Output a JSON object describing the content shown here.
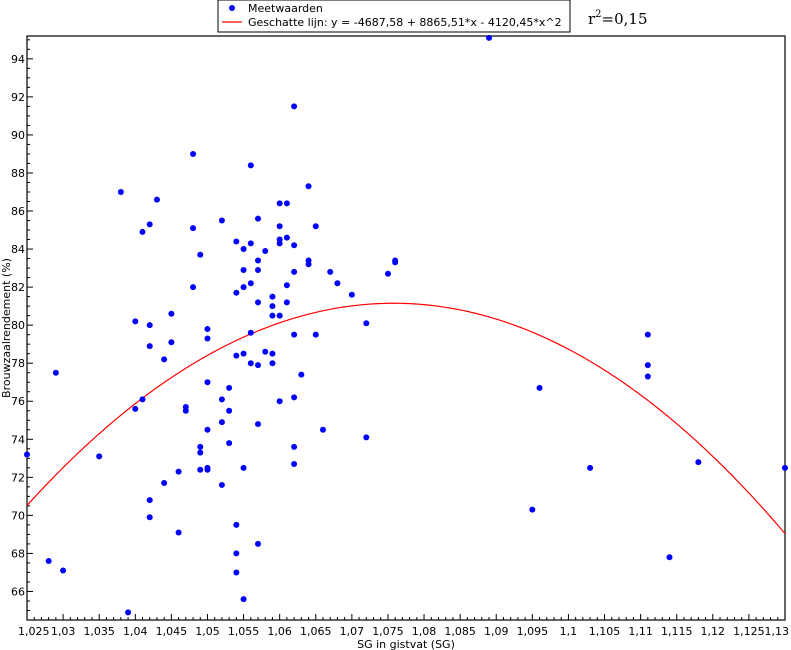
{
  "chart_data": {
    "type": "scatter",
    "xlabel": "SG in gistvat (SG)",
    "ylabel": "Brouwzaalrendement (%)",
    "xlim": [
      1.025,
      1.13
    ],
    "ylim": [
      64.5,
      95.2
    ],
    "x_ticks": [
      "1,025",
      "1,03",
      "1,035",
      "1,04",
      "1,045",
      "1,05",
      "1,055",
      "1,06",
      "1,065",
      "1,07",
      "1,075",
      "1,08",
      "1,085",
      "1,09",
      "1,095",
      "1,1",
      "1,105",
      "1,11",
      "1,115",
      "1,12",
      "1,125",
      "1,13"
    ],
    "y_ticks": [
      "66",
      "68",
      "70",
      "72",
      "74",
      "76",
      "78",
      "80",
      "82",
      "84",
      "86",
      "88",
      "90",
      "92",
      "94"
    ],
    "legend_position": "top-center",
    "annotation": {
      "prefix": "r",
      "sup": "2",
      "value": "=0,15"
    },
    "series": [
      {
        "name": "Meetwaarden",
        "kind": "scatter",
        "color": "#0000ff",
        "points": [
          [
            1.025,
            73.2
          ],
          [
            1.028,
            67.6
          ],
          [
            1.029,
            77.5
          ],
          [
            1.03,
            67.1
          ],
          [
            1.035,
            73.1
          ],
          [
            1.038,
            87.0
          ],
          [
            1.039,
            64.9
          ],
          [
            1.04,
            80.2
          ],
          [
            1.04,
            75.6
          ],
          [
            1.041,
            84.9
          ],
          [
            1.041,
            76.1
          ],
          [
            1.042,
            85.3
          ],
          [
            1.042,
            80.0
          ],
          [
            1.042,
            78.9
          ],
          [
            1.042,
            70.8
          ],
          [
            1.042,
            69.9
          ],
          [
            1.043,
            86.6
          ],
          [
            1.044,
            78.2
          ],
          [
            1.044,
            71.7
          ],
          [
            1.045,
            80.6
          ],
          [
            1.045,
            79.1
          ],
          [
            1.046,
            72.3
          ],
          [
            1.046,
            69.1
          ],
          [
            1.047,
            75.7
          ],
          [
            1.047,
            75.5
          ],
          [
            1.048,
            85.1
          ],
          [
            1.048,
            82.0
          ],
          [
            1.048,
            89.0
          ],
          [
            1.049,
            83.7
          ],
          [
            1.049,
            73.6
          ],
          [
            1.049,
            73.3
          ],
          [
            1.049,
            72.4
          ],
          [
            1.05,
            79.8
          ],
          [
            1.05,
            79.3
          ],
          [
            1.05,
            77.0
          ],
          [
            1.05,
            74.5
          ],
          [
            1.05,
            72.5
          ],
          [
            1.05,
            72.4
          ],
          [
            1.052,
            85.5
          ],
          [
            1.052,
            76.1
          ],
          [
            1.052,
            74.9
          ],
          [
            1.052,
            71.6
          ],
          [
            1.053,
            76.7
          ],
          [
            1.053,
            75.5
          ],
          [
            1.053,
            73.8
          ],
          [
            1.054,
            84.4
          ],
          [
            1.054,
            81.7
          ],
          [
            1.054,
            78.4
          ],
          [
            1.054,
            69.5
          ],
          [
            1.054,
            68.0
          ],
          [
            1.054,
            67.0
          ],
          [
            1.055,
            84.0
          ],
          [
            1.055,
            82.9
          ],
          [
            1.055,
            82.0
          ],
          [
            1.055,
            78.5
          ],
          [
            1.055,
            72.5
          ],
          [
            1.055,
            65.6
          ],
          [
            1.056,
            88.4
          ],
          [
            1.056,
            84.3
          ],
          [
            1.056,
            82.2
          ],
          [
            1.056,
            79.6
          ],
          [
            1.056,
            78.0
          ],
          [
            1.057,
            85.6
          ],
          [
            1.057,
            83.4
          ],
          [
            1.057,
            82.9
          ],
          [
            1.057,
            81.2
          ],
          [
            1.057,
            77.9
          ],
          [
            1.057,
            74.8
          ],
          [
            1.057,
            68.5
          ],
          [
            1.058,
            83.9
          ],
          [
            1.058,
            78.6
          ],
          [
            1.059,
            81.5
          ],
          [
            1.059,
            81.0
          ],
          [
            1.059,
            80.5
          ],
          [
            1.059,
            78.5
          ],
          [
            1.059,
            78.0
          ],
          [
            1.06,
            86.4
          ],
          [
            1.06,
            85.2
          ],
          [
            1.06,
            84.5
          ],
          [
            1.06,
            84.3
          ],
          [
            1.06,
            80.5
          ],
          [
            1.06,
            76.0
          ],
          [
            1.061,
            86.4
          ],
          [
            1.061,
            84.6
          ],
          [
            1.061,
            82.1
          ],
          [
            1.061,
            81.2
          ],
          [
            1.062,
            91.5
          ],
          [
            1.062,
            84.2
          ],
          [
            1.062,
            82.8
          ],
          [
            1.062,
            79.5
          ],
          [
            1.062,
            76.2
          ],
          [
            1.062,
            73.6
          ],
          [
            1.062,
            72.7
          ],
          [
            1.063,
            77.4
          ],
          [
            1.064,
            87.3
          ],
          [
            1.064,
            83.4
          ],
          [
            1.064,
            83.2
          ],
          [
            1.065,
            85.2
          ],
          [
            1.065,
            79.5
          ],
          [
            1.066,
            74.5
          ],
          [
            1.067,
            82.8
          ],
          [
            1.068,
            82.2
          ],
          [
            1.07,
            81.6
          ],
          [
            1.072,
            80.1
          ],
          [
            1.072,
            74.1
          ],
          [
            1.075,
            82.7
          ],
          [
            1.076,
            83.4
          ],
          [
            1.076,
            83.3
          ],
          [
            1.089,
            95.1
          ],
          [
            1.095,
            70.3
          ],
          [
            1.096,
            76.7
          ],
          [
            1.103,
            72.5
          ],
          [
            1.111,
            79.5
          ],
          [
            1.111,
            77.9
          ],
          [
            1.111,
            77.3
          ],
          [
            1.114,
            67.8
          ],
          [
            1.118,
            72.8
          ],
          [
            1.13,
            72.5
          ]
        ]
      },
      {
        "name": "Geschatte lijn: y = -4687,58 + 8865,51*x - 4120,45*x^2",
        "kind": "fit-curve",
        "color": "#ff0000",
        "coefficients": {
          "a": -4687.58,
          "b": 8865.51,
          "c": -4120.45
        },
        "x_range": [
          1.025,
          1.13
        ]
      }
    ]
  }
}
